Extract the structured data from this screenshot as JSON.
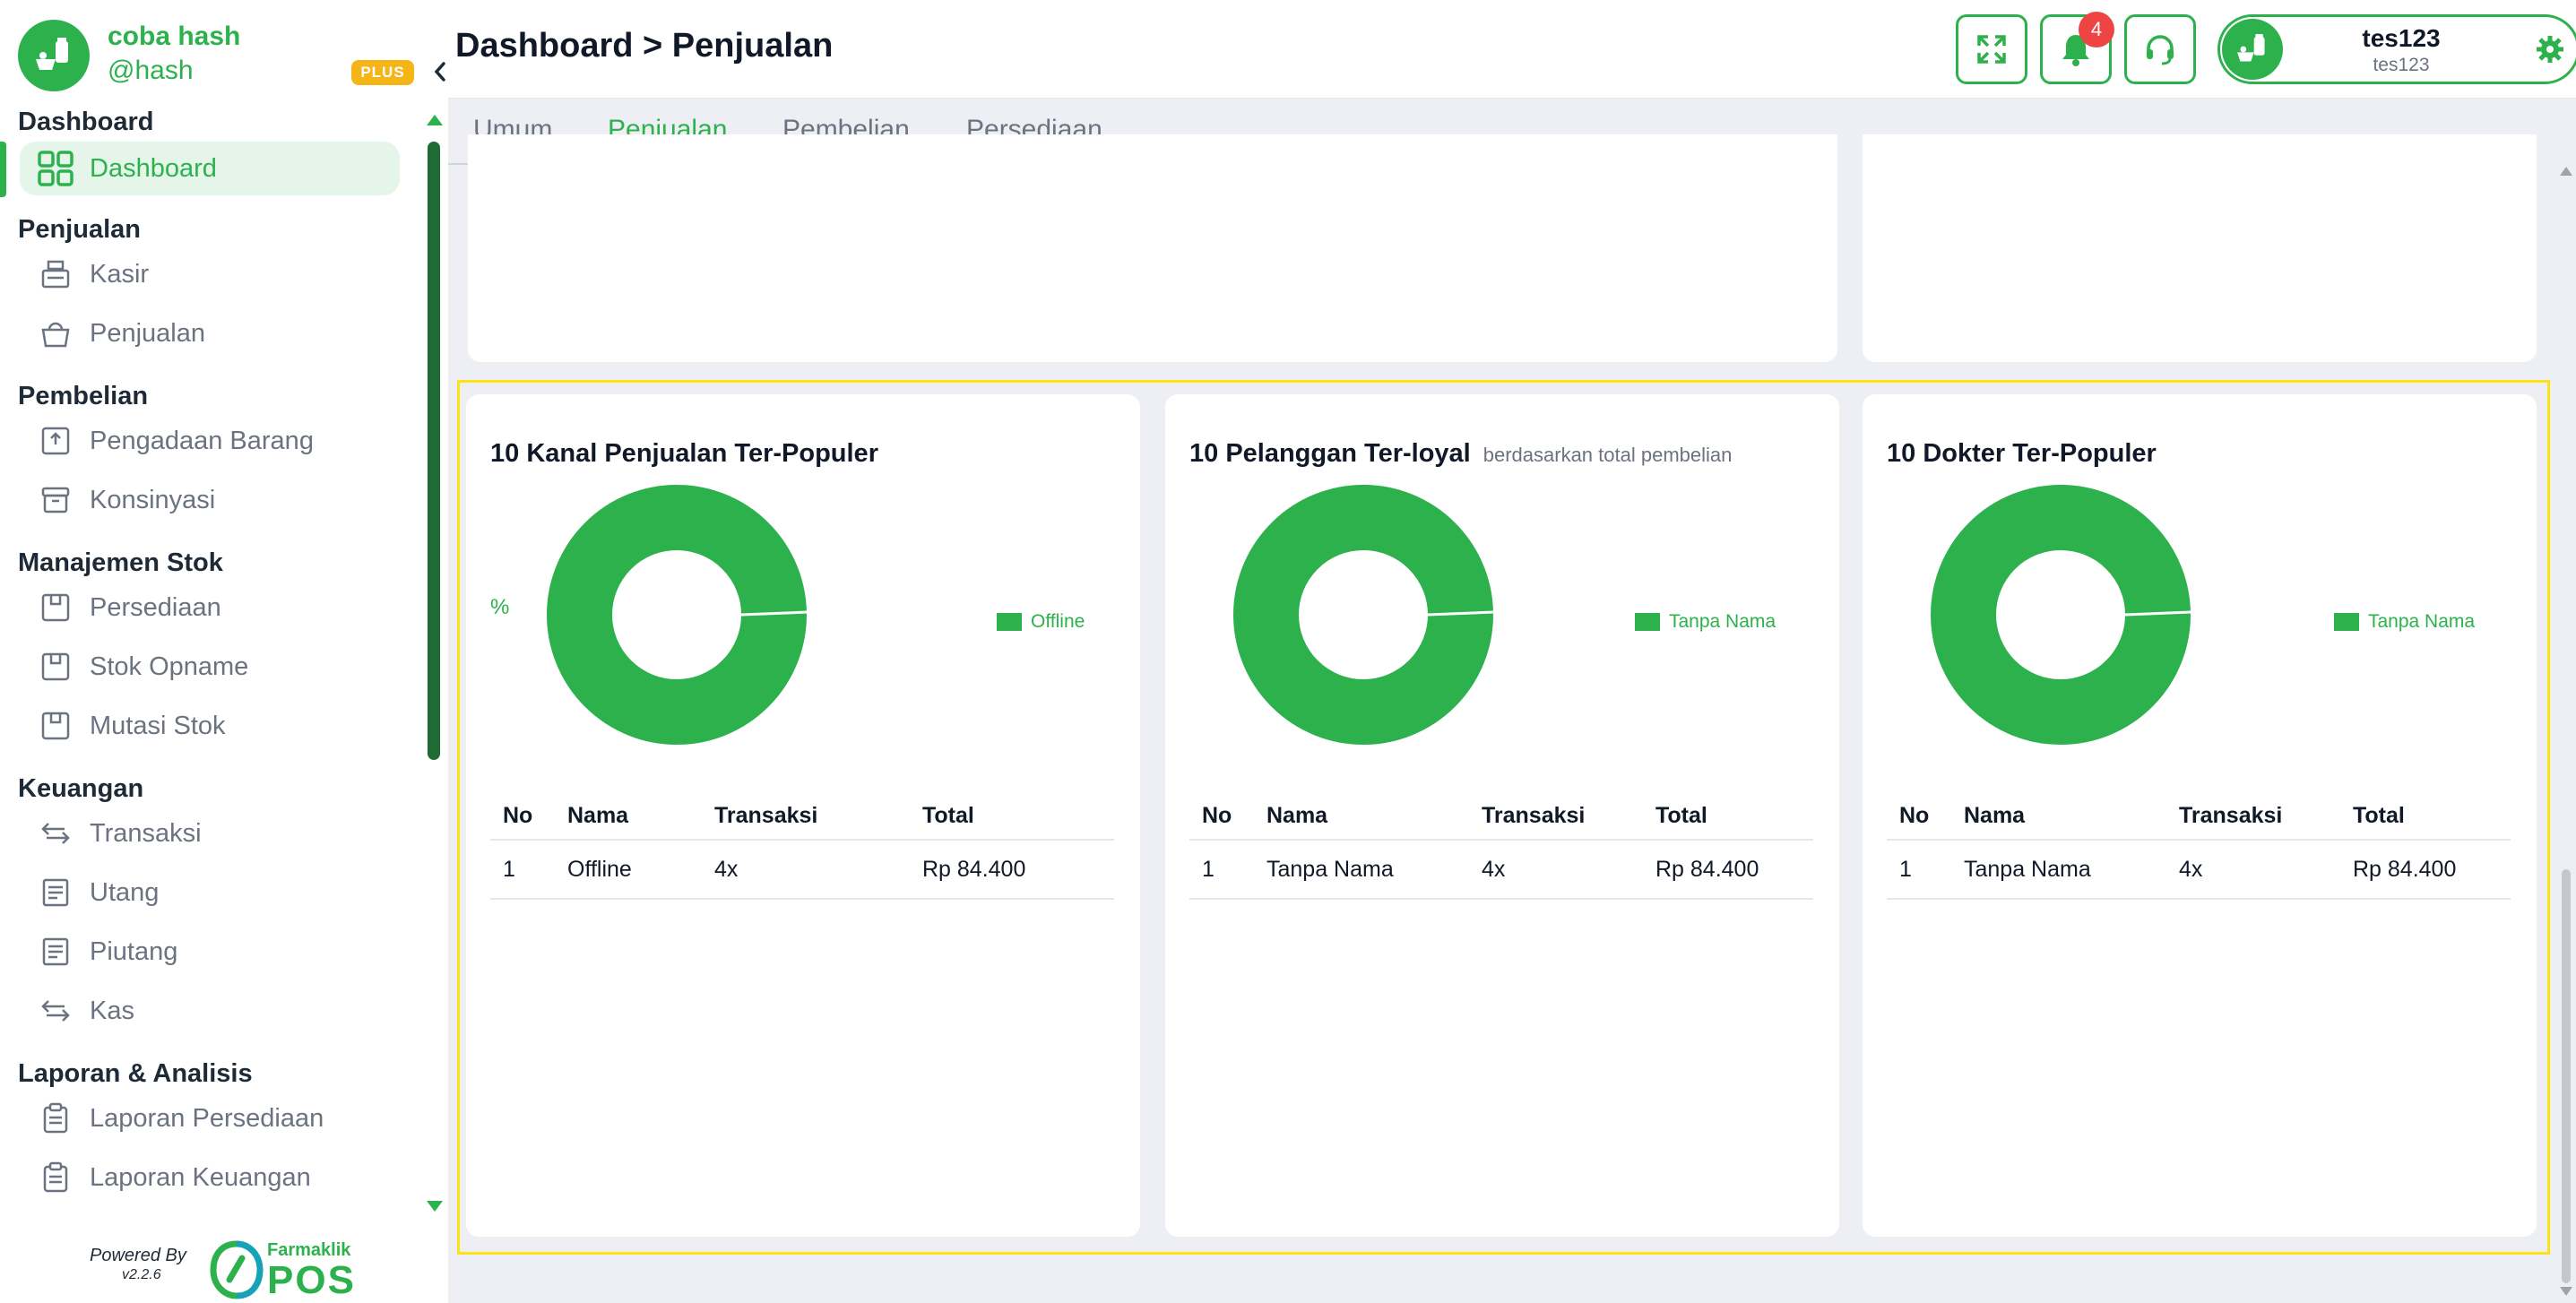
{
  "brand": {
    "name": "coba hash",
    "handle": "@hash",
    "plan_badge": "PLUS"
  },
  "sidebar": {
    "sections": [
      {
        "title": "Dashboard",
        "items": [
          {
            "label": "Dashboard",
            "icon": "grid-icon",
            "active": true
          }
        ]
      },
      {
        "title": "Penjualan",
        "items": [
          {
            "label": "Kasir",
            "icon": "cash-register-icon"
          },
          {
            "label": "Penjualan",
            "icon": "basket-icon"
          }
        ]
      },
      {
        "title": "Pembelian",
        "items": [
          {
            "label": "Pengadaan Barang",
            "icon": "box-in-icon"
          },
          {
            "label": "Konsinyasi",
            "icon": "archive-icon"
          }
        ]
      },
      {
        "title": "Manajemen Stok",
        "items": [
          {
            "label": "Persediaan",
            "icon": "package-icon"
          },
          {
            "label": "Stok Opname",
            "icon": "package-icon"
          },
          {
            "label": "Mutasi Stok",
            "icon": "package-icon"
          }
        ]
      },
      {
        "title": "Keuangan",
        "items": [
          {
            "label": "Transaksi",
            "icon": "transfer-icon"
          },
          {
            "label": "Utang",
            "icon": "receipt-icon"
          },
          {
            "label": "Piutang",
            "icon": "receipt-icon"
          },
          {
            "label": "Kas",
            "icon": "transfer-icon"
          }
        ]
      },
      {
        "title": "Laporan & Analisis",
        "items": [
          {
            "label": "Laporan Persediaan",
            "icon": "clipboard-icon"
          },
          {
            "label": "Laporan Keuangan",
            "icon": "clipboard-icon"
          }
        ]
      }
    ]
  },
  "powered": {
    "by": "Powered By",
    "version": "v2.2.6",
    "brand": "Farmaklik",
    "product": "POS"
  },
  "header": {
    "title": "Dashboard > Penjualan",
    "notification_count": "4"
  },
  "profile": {
    "name": "tes123",
    "subtitle": "tes123"
  },
  "tabs": [
    {
      "label": "Umum"
    },
    {
      "label": "Penjualan",
      "active": true
    },
    {
      "label": "Pembelian"
    },
    {
      "label": "Persediaan"
    }
  ],
  "colors": {
    "accent": "#2db14d",
    "highlight": "#fde216",
    "badge": "#f6b517",
    "notification": "#ef4444"
  },
  "table_headers": {
    "no": "No",
    "nama": "Nama",
    "transaksi": "Transaksi",
    "total": "Total"
  },
  "panels": [
    {
      "title": "10 Kanal Penjualan Ter-Populer",
      "subtitle": "",
      "y_label": "%",
      "legend": "Offline",
      "rows": [
        {
          "no": "1",
          "nama": "Offline",
          "transaksi": "4x",
          "total": "Rp 84.400"
        }
      ]
    },
    {
      "title": "10 Pelanggan Ter-loyal",
      "subtitle": "berdasarkan total pembelian",
      "y_label": "",
      "legend": "Tanpa Nama",
      "rows": [
        {
          "no": "1",
          "nama": "Tanpa Nama",
          "transaksi": "4x",
          "total": "Rp 84.400"
        }
      ]
    },
    {
      "title": "10 Dokter Ter-Populer",
      "subtitle": "",
      "y_label": "",
      "legend": "Tanpa Nama",
      "rows": [
        {
          "no": "1",
          "nama": "Tanpa Nama",
          "transaksi": "4x",
          "total": "Rp 84.400"
        }
      ]
    }
  ],
  "chart_data": [
    {
      "type": "pie",
      "title": "10 Kanal Penjualan Ter-Populer",
      "categories": [
        "Offline"
      ],
      "values": [
        100
      ],
      "legend": "right"
    },
    {
      "type": "pie",
      "title": "10 Pelanggan Ter-loyal",
      "categories": [
        "Tanpa Nama"
      ],
      "values": [
        100
      ],
      "legend": "right"
    },
    {
      "type": "pie",
      "title": "10 Dokter Ter-Populer",
      "categories": [
        "Tanpa Nama"
      ],
      "values": [
        100
      ],
      "legend": "right"
    }
  ]
}
